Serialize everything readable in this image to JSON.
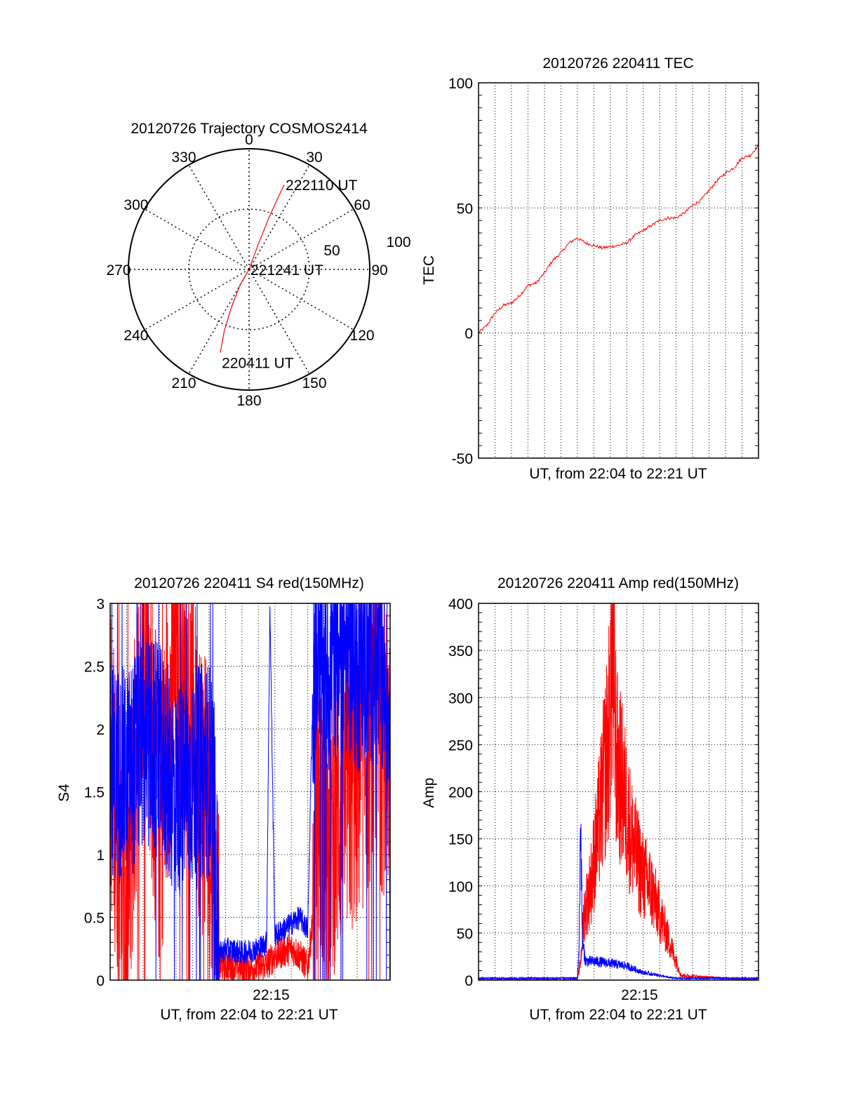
{
  "chart_data": [
    {
      "type": "polar",
      "title": "20120726 Trajectory COSMOS2414",
      "angle_labels": [
        "0",
        "30",
        "60",
        "90",
        "120",
        "150",
        "180",
        "210",
        "240",
        "270",
        "300",
        "330"
      ],
      "radial_labels": [
        "50",
        "100"
      ],
      "rlim": [
        0,
        100
      ],
      "series": [
        {
          "color": "#ff0000",
          "points": [
            {
              "az": 199,
              "r": 73
            },
            {
              "az": 202,
              "r": 55
            },
            {
              "az": 205,
              "r": 35
            },
            {
              "az": 210,
              "r": 15
            },
            {
              "az": 0,
              "r": 0
            },
            {
              "az": 20,
              "r": 20
            },
            {
              "az": 21,
              "r": 45
            },
            {
              "az": 22,
              "r": 65
            },
            {
              "az": 22.5,
              "r": 76
            }
          ]
        }
      ],
      "annotations": [
        {
          "text": "222110 UT",
          "az": 22.5,
          "r": 76
        },
        {
          "text": "221241 UT",
          "az": 0,
          "r": 0
        },
        {
          "text": "220411 UT",
          "az": 199,
          "r": 73
        }
      ]
    },
    {
      "type": "line",
      "title": "20120726 220411 TEC",
      "xlabel": "UT, from 22:04 to 22:21 UT",
      "ylabel": "TEC",
      "ylim": [
        -50,
        100
      ],
      "yticks": [
        "-50",
        "0",
        "50",
        "100"
      ],
      "xlim": [
        0,
        17
      ],
      "grid": true,
      "series": [
        {
          "color": "#ff0000",
          "x": [
            0,
            0.5,
            1,
            1.5,
            2,
            2.5,
            3,
            3.5,
            4,
            4.5,
            5,
            5.5,
            6,
            6.5,
            7,
            7.5,
            8,
            8.5,
            9,
            9.5,
            10,
            10.5,
            11,
            11.5,
            12,
            12.5,
            13,
            13.5,
            14,
            14.5,
            15,
            15.5,
            16,
            16.5,
            17
          ],
          "y": [
            0,
            3,
            8,
            11,
            12,
            15,
            19,
            20,
            24,
            29,
            32,
            36,
            38,
            36,
            35,
            34,
            34.5,
            35,
            36,
            39,
            41,
            43,
            45,
            46,
            46,
            48,
            51,
            53,
            57,
            61,
            64,
            66,
            70,
            71,
            75
          ]
        }
      ]
    },
    {
      "type": "line",
      "title": "20120726 220411 S4 red(150MHz)",
      "xlabel": "UT, from 22:04 to 22:21 UT",
      "ylabel": "S4",
      "ylim": [
        0,
        3
      ],
      "yticks": [
        "0",
        "0.5",
        "1",
        "1.5",
        "2",
        "2.5",
        "3"
      ],
      "xlim": [
        0,
        17
      ],
      "xticks": [
        "22:15"
      ],
      "grid": true,
      "series": [
        {
          "color": "#ff0000",
          "x": [
            0,
            1,
            2,
            3,
            4,
            5,
            6,
            6.3,
            6.6,
            7,
            8,
            9,
            9.5,
            10,
            11,
            11.5,
            12,
            12.3,
            12.6,
            13,
            14,
            15,
            16,
            17
          ],
          "y": [
            1.8,
            0.5,
            2.8,
            1.2,
            2.6,
            2.0,
            1.2,
            0.9,
            0.1,
            0.12,
            0.1,
            0.1,
            0.12,
            0.2,
            0.25,
            0.2,
            0.1,
            0.5,
            1.5,
            1.0,
            1.4,
            1.6,
            2.0,
            1.8
          ]
        },
        {
          "color": "#0000ff",
          "x": [
            0,
            1,
            2,
            3,
            4,
            5,
            6,
            6.3,
            6.6,
            7,
            8,
            9,
            9.5,
            9.7,
            10,
            11,
            11.5,
            12,
            12.3,
            12.6,
            13,
            14,
            15,
            16,
            17
          ],
          "y": [
            1.7,
            1.6,
            1.9,
            1.8,
            1.5,
            1.6,
            1.7,
            1.4,
            0.2,
            0.25,
            0.22,
            0.25,
            0.3,
            3.0,
            0.35,
            0.45,
            0.5,
            0.4,
            2.3,
            2.9,
            2.4,
            2.7,
            2.5,
            2.6,
            2.2
          ]
        }
      ]
    },
    {
      "type": "line",
      "title": "20120726 220411 Amp red(150MHz)",
      "xlabel": "UT, from 22:04 to 22:21 UT",
      "ylabel": "Amp",
      "ylim": [
        0,
        400
      ],
      "yticks": [
        "0",
        "50",
        "100",
        "150",
        "200",
        "250",
        "300",
        "350",
        "400"
      ],
      "xlim": [
        0,
        17
      ],
      "xticks": [
        "22:15"
      ],
      "grid": true,
      "series": [
        {
          "color": "#ff0000",
          "x": [
            0,
            6,
            6.2,
            6.4,
            6.8,
            7.2,
            7.6,
            7.9,
            8.1,
            8.4,
            8.8,
            9.2,
            9.6,
            10.0,
            10.4,
            10.8,
            11.2,
            11.6,
            12.0,
            12.3,
            17
          ],
          "y": [
            0,
            0,
            20,
            70,
            100,
            150,
            210,
            260,
            340,
            230,
            200,
            160,
            130,
            110,
            100,
            80,
            60,
            40,
            20,
            5,
            0
          ]
        },
        {
          "color": "#0000ff",
          "x": [
            0,
            6,
            6.1,
            6.2,
            6.3,
            6.5,
            7,
            8,
            9,
            10,
            11,
            11.5,
            12,
            12.5,
            17
          ],
          "y": [
            2,
            2,
            30,
            180,
            40,
            20,
            20,
            18,
            15,
            8,
            5,
            3,
            2,
            2,
            2
          ]
        }
      ]
    }
  ]
}
